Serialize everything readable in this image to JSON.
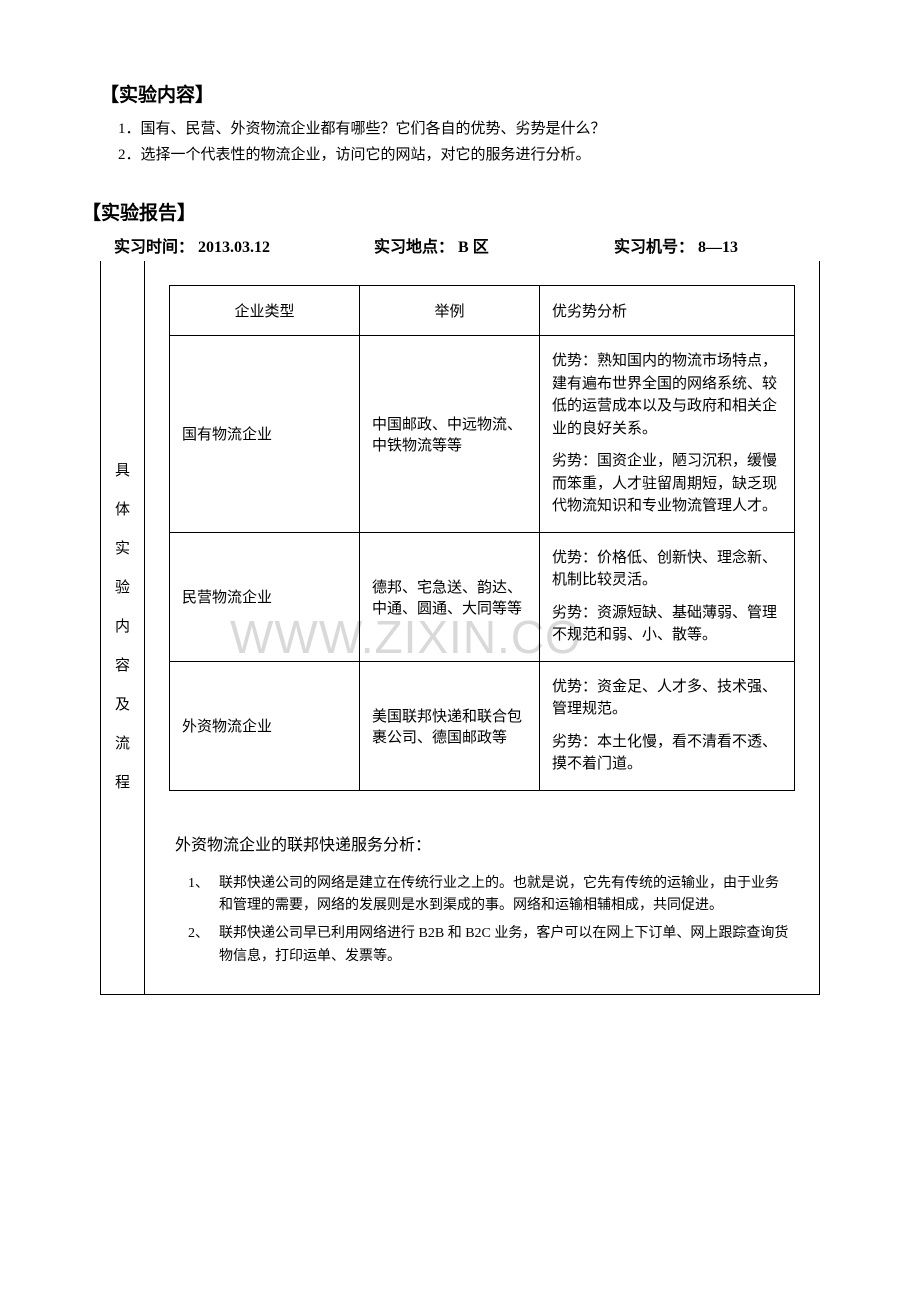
{
  "section1": {
    "title": "【实验内容】",
    "items": [
      "1．国有、民营、外资物流企业都有哪些？它们各自的优势、劣势是什么？",
      "2．选择一个代表性的物流企业，访问它的网站，对它的服务进行分析。"
    ]
  },
  "section2": {
    "title": "【实验报告】",
    "info": {
      "time_label": "实习时间：",
      "time_value": "2013.03.12",
      "place_label": "实习地点：",
      "place_value": "B 区",
      "machine_label": "实习机号：",
      "machine_value": "8—13"
    },
    "vert_label": "具体实验内容及流程",
    "table": {
      "headers": [
        "企业类型",
        "举例",
        "优劣势分析"
      ],
      "rows": [
        {
          "type": "国有物流企业",
          "example": "中国邮政、中远物流、中铁物流等等",
          "adv": "优势：熟知国内的物流市场特点，建有遍布世界全国的网络系统、较低的运营成本以及与政府和相关企业的良好关系。",
          "dis": "劣势：国资企业，陋习沉积，缓慢而笨重，人才驻留周期短，缺乏现代物流知识和专业物流管理人才。"
        },
        {
          "type": "民营物流企业",
          "example": "德邦、宅急送、韵达、中通、圆通、大同等等",
          "adv": "优势：价格低、创新快、理念新、机制比较灵活。",
          "dis": "劣势：资源短缺、基础薄弱、管理不规范和弱、小、散等。"
        },
        {
          "type": "外资物流企业",
          "example": "美国联邦快递和联合包裹公司、德国邮政等",
          "adv": "优势：资金足、人才多、技术强、管理规范。",
          "dis": "劣势：本土化慢，看不清看不透、摸不着门道。"
        }
      ]
    },
    "analysis": {
      "title": "外资物流企业的联邦快递服务分析：",
      "items": [
        "联邦快递公司的网络是建立在传统行业之上的。也就是说，它先有传统的运输业，由于业务和管理的需要，网络的发展则是水到渠成的事。网络和运输相辅相成，共同促进。",
        "联邦快递公司早已利用网络进行 B2B 和 B2C 业务，客户可以在网上下订单、网上跟踪查询货物信息，打印运单、发票等。"
      ]
    }
  },
  "watermark": "WWW.ZIXIN.CO",
  "colors": {
    "text": "#000000",
    "bg": "#ffffff",
    "watermark": "#d9d9d9",
    "border": "#000000"
  }
}
